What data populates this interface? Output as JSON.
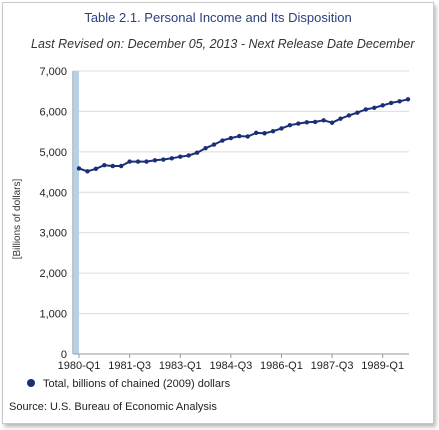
{
  "chart_data": {
    "type": "line",
    "title": "Table 2.1. Personal Income and Its Disposition",
    "subtitle": "Last Revised on: December 05, 2013 - Next Release Date December",
    "ylabel": "[Billions of dollars]",
    "xlabel": "",
    "ylim": [
      0,
      7000
    ],
    "yticks": [
      0,
      1000,
      2000,
      3000,
      4000,
      5000,
      6000,
      7000
    ],
    "ytick_labels": [
      "0",
      "1,000",
      "2,000",
      "3,000",
      "4,000",
      "5,000",
      "6,000",
      "7,000"
    ],
    "xtick_labels": [
      "1980-Q1",
      "1981-Q3",
      "1983-Q1",
      "1984-Q3",
      "1986-Q1",
      "1987-Q3",
      "1989-Q1"
    ],
    "x": [
      "1980-Q1",
      "1980-Q2",
      "1980-Q3",
      "1980-Q4",
      "1981-Q1",
      "1981-Q2",
      "1981-Q3",
      "1981-Q4",
      "1982-Q1",
      "1982-Q2",
      "1982-Q3",
      "1982-Q4",
      "1983-Q1",
      "1983-Q2",
      "1983-Q3",
      "1983-Q4",
      "1984-Q1",
      "1984-Q2",
      "1984-Q3",
      "1984-Q4",
      "1985-Q1",
      "1985-Q2",
      "1985-Q3",
      "1985-Q4",
      "1986-Q1",
      "1986-Q2",
      "1986-Q3",
      "1986-Q4",
      "1987-Q1",
      "1987-Q2",
      "1987-Q3",
      "1987-Q4",
      "1988-Q1",
      "1988-Q2",
      "1988-Q3",
      "1988-Q4",
      "1989-Q1",
      "1989-Q2",
      "1989-Q3",
      "1989-Q4"
    ],
    "series": [
      {
        "name": "Total, billions of chained (2009) dollars",
        "color": "#1a2f78",
        "values": [
          4590,
          4520,
          4580,
          4670,
          4650,
          4650,
          4760,
          4760,
          4760,
          4790,
          4810,
          4840,
          4880,
          4910,
          4980,
          5090,
          5180,
          5280,
          5340,
          5390,
          5380,
          5470,
          5460,
          5510,
          5580,
          5660,
          5700,
          5730,
          5740,
          5780,
          5720,
          5820,
          5900,
          5970,
          6050,
          6090,
          6150,
          6210,
          6250,
          6300
        ]
      }
    ],
    "highlight_band": {
      "start": "1980-Q1",
      "color": "#b8d0e4"
    },
    "grid": true,
    "legend_position": "bottom-left"
  },
  "legend": {
    "label": "Total, billions of chained (2009) dollars"
  },
  "source": "Source: U.S. Bureau of Economic Analysis",
  "colors": {
    "line": "#1a2f78",
    "grid": "#dcdcdc",
    "band": "#b8d0e4",
    "title": "#2b3f7a"
  }
}
